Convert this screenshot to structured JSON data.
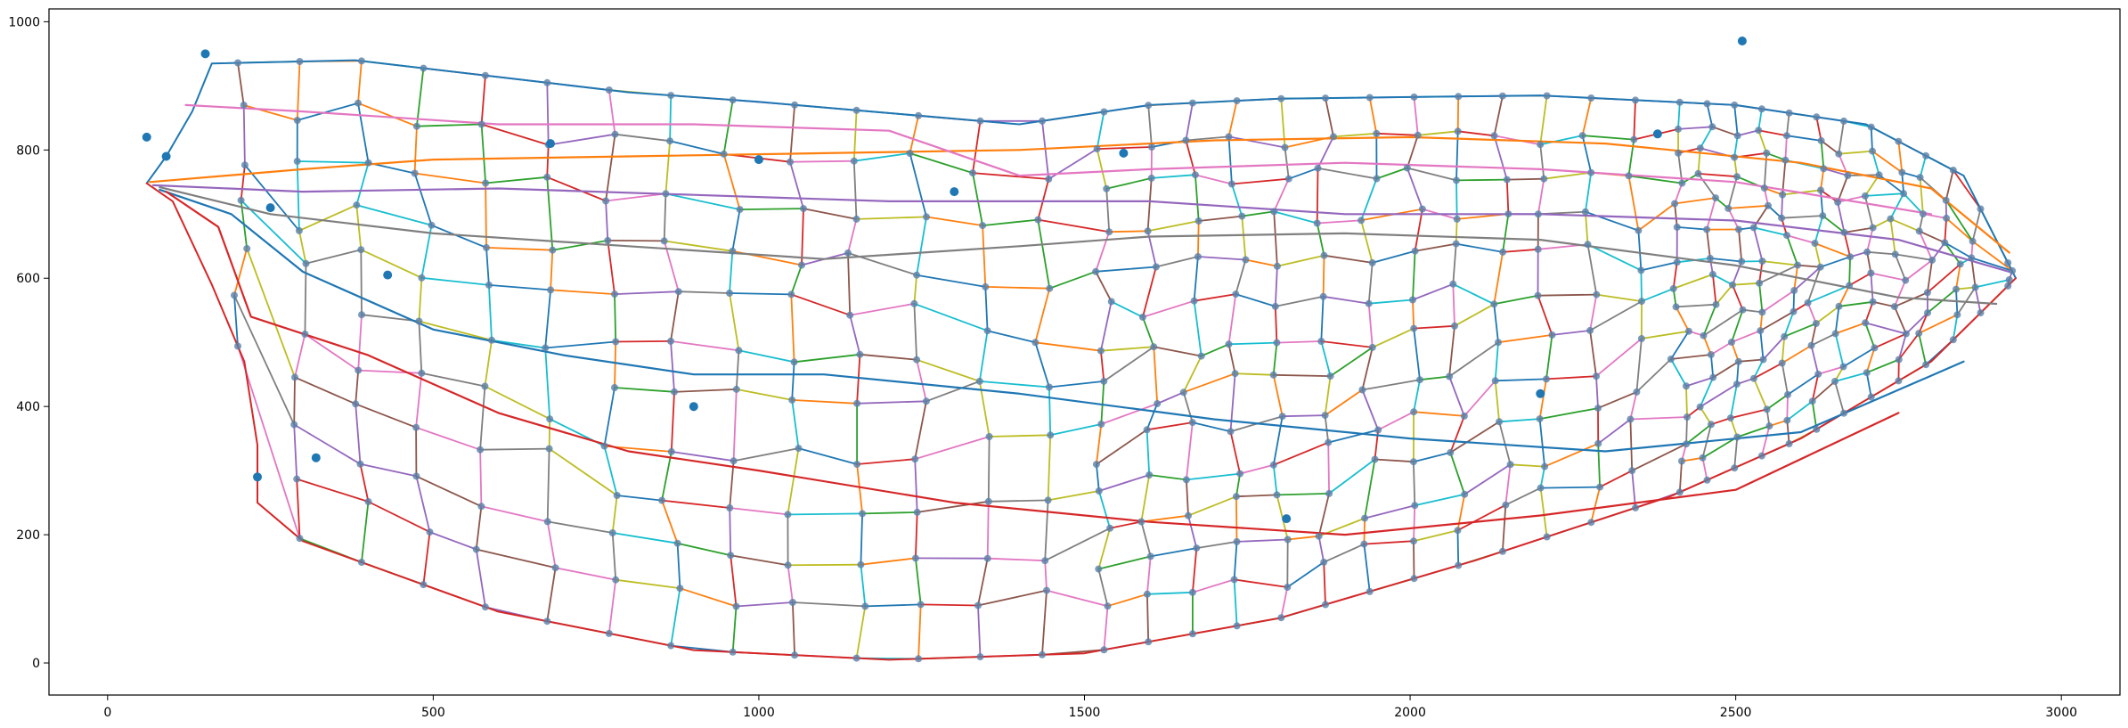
{
  "chart_data": {
    "type": "line",
    "title": "",
    "xlabel": "",
    "ylabel": "",
    "xlim": [
      -90,
      3090
    ],
    "ylim": [
      -50,
      1020
    ],
    "x_ticks": [
      0,
      500,
      1000,
      1500,
      2000,
      2500,
      3000
    ],
    "y_ticks": [
      0,
      200,
      400,
      600,
      800,
      1000
    ],
    "x_tick_labels": [
      "0",
      "500",
      "1000",
      "1500",
      "2000",
      "2500",
      "3000"
    ],
    "y_tick_labels": [
      "0",
      "200",
      "400",
      "600",
      "800",
      "1000"
    ],
    "grid": false,
    "legend": "none",
    "series_colors": [
      "#1f77b4",
      "#ff7f0e",
      "#2ca02c",
      "#d62728",
      "#9467bd",
      "#8c564b",
      "#e377c2",
      "#7f7f7f",
      "#bcbd22",
      "#17becf"
    ],
    "marker_color": "#1f77b4",
    "outline": {
      "upper": [
        [
          60,
          748
        ],
        [
          90,
          790
        ],
        [
          130,
          860
        ],
        [
          160,
          935
        ],
        [
          380,
          940
        ],
        [
          800,
          890
        ],
        [
          1000,
          875
        ],
        [
          1400,
          840
        ],
        [
          1600,
          870
        ],
        [
          1800,
          880
        ],
        [
          2200,
          885
        ],
        [
          2500,
          870
        ],
        [
          2700,
          840
        ],
        [
          2850,
          760
        ],
        [
          2930,
          600
        ]
      ],
      "lower": [
        [
          60,
          748
        ],
        [
          100,
          720
        ],
        [
          160,
          590
        ],
        [
          210,
          470
        ],
        [
          230,
          340
        ],
        [
          230,
          250
        ],
        [
          300,
          190
        ],
        [
          600,
          80
        ],
        [
          900,
          20
        ],
        [
          1200,
          5
        ],
        [
          1500,
          15
        ],
        [
          1800,
          70
        ],
        [
          2100,
          160
        ],
        [
          2400,
          260
        ],
        [
          2600,
          350
        ],
        [
          2800,
          470
        ],
        [
          2930,
          600
        ]
      ]
    },
    "longitudinal_veins": [
      [
        [
          65,
          750
        ],
        [
          300,
          770
        ],
        [
          500,
          785
        ],
        [
          800,
          790
        ],
        [
          1100,
          795
        ],
        [
          1400,
          800
        ],
        [
          1700,
          815
        ],
        [
          2000,
          820
        ],
        [
          2300,
          810
        ],
        [
          2600,
          780
        ],
        [
          2800,
          740
        ],
        [
          2920,
          640
        ]
      ],
      [
        [
          70,
          745
        ],
        [
          300,
          735
        ],
        [
          600,
          740
        ],
        [
          900,
          730
        ],
        [
          1200,
          720
        ],
        [
          1400,
          720
        ],
        [
          1600,
          720
        ],
        [
          1900,
          700
        ],
        [
          2200,
          700
        ],
        [
          2500,
          690
        ],
        [
          2750,
          660
        ],
        [
          2920,
          610
        ]
      ],
      [
        [
          80,
          742
        ],
        [
          250,
          700
        ],
        [
          500,
          670
        ],
        [
          800,
          650
        ],
        [
          1100,
          630
        ],
        [
          1400,
          650
        ],
        [
          1600,
          665
        ],
        [
          1900,
          670
        ],
        [
          2200,
          660
        ],
        [
          2500,
          620
        ],
        [
          2750,
          570
        ],
        [
          2900,
          560
        ]
      ],
      [
        [
          80,
          738
        ],
        [
          190,
          700
        ],
        [
          300,
          610
        ],
        [
          500,
          520
        ],
        [
          700,
          480
        ],
        [
          900,
          450
        ],
        [
          1100,
          450
        ],
        [
          1400,
          420
        ],
        [
          1700,
          380
        ],
        [
          2000,
          350
        ],
        [
          2300,
          330
        ],
        [
          2600,
          360
        ],
        [
          2850,
          470
        ]
      ],
      [
        [
          90,
          735
        ],
        [
          170,
          680
        ],
        [
          220,
          540
        ],
        [
          400,
          480
        ],
        [
          600,
          390
        ],
        [
          800,
          330
        ],
        [
          1000,
          300
        ],
        [
          1300,
          250
        ],
        [
          1600,
          220
        ],
        [
          1900,
          200
        ],
        [
          2200,
          230
        ],
        [
          2500,
          270
        ],
        [
          2750,
          390
        ]
      ],
      [
        [
          120,
          870
        ],
        [
          300,
          860
        ],
        [
          600,
          840
        ],
        [
          900,
          840
        ],
        [
          1200,
          830
        ],
        [
          1400,
          760
        ],
        [
          1600,
          770
        ],
        [
          1900,
          780
        ],
        [
          2200,
          770
        ],
        [
          2500,
          750
        ],
        [
          2800,
          700
        ]
      ]
    ],
    "stray_points": [
      [
        150,
        950
      ],
      [
        60,
        820
      ],
      [
        90,
        790
      ],
      [
        2510,
        970
      ],
      [
        2380,
        825
      ],
      [
        1560,
        795
      ],
      [
        680,
        810
      ],
      [
        1000,
        785
      ],
      [
        1300,
        735
      ],
      [
        430,
        605
      ],
      [
        900,
        400
      ],
      [
        1810,
        225
      ],
      [
        2200,
        420
      ],
      [
        250,
        710
      ],
      [
        320,
        320
      ],
      [
        230,
        290
      ]
    ]
  },
  "style": {
    "axis_color": "#000000",
    "background": "#ffffff"
  }
}
